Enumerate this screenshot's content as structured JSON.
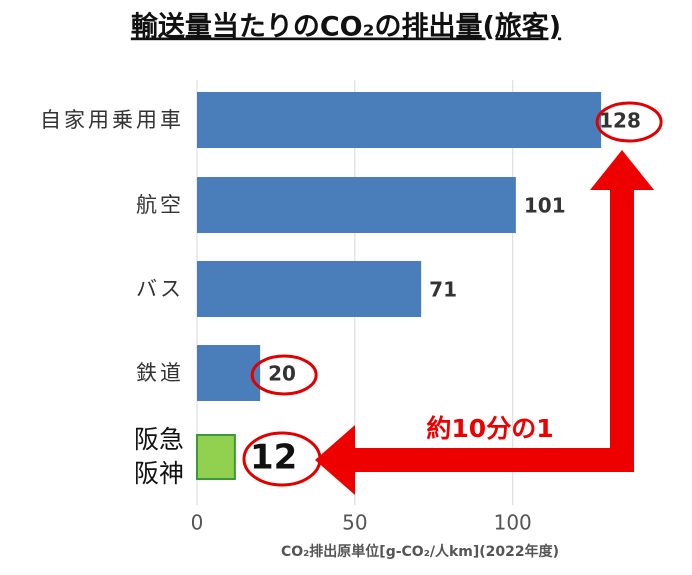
{
  "chart_data": {
    "type": "hbar",
    "title": "輸送量当たりのCO₂の排出量(旅客)",
    "categories": [
      "自家用乗用車",
      "航空",
      "バス",
      "鉄道",
      "阪急\n阪神"
    ],
    "values": [
      128,
      101,
      71,
      20,
      12
    ],
    "colors": [
      "#4a7ebb",
      "#4a7ebb",
      "#4a7ebb",
      "#4a7ebb",
      "#92d050"
    ],
    "highlighted": [
      0,
      3,
      4
    ],
    "highlight_color": "#e00000",
    "annotation": "約10分の1",
    "xlabel": "CO₂排出原単位[g-CO₂/人km](2022年度)",
    "xlim": [
      0,
      140
    ],
    "xticks": [
      0,
      50,
      100
    ],
    "grid": true
  }
}
